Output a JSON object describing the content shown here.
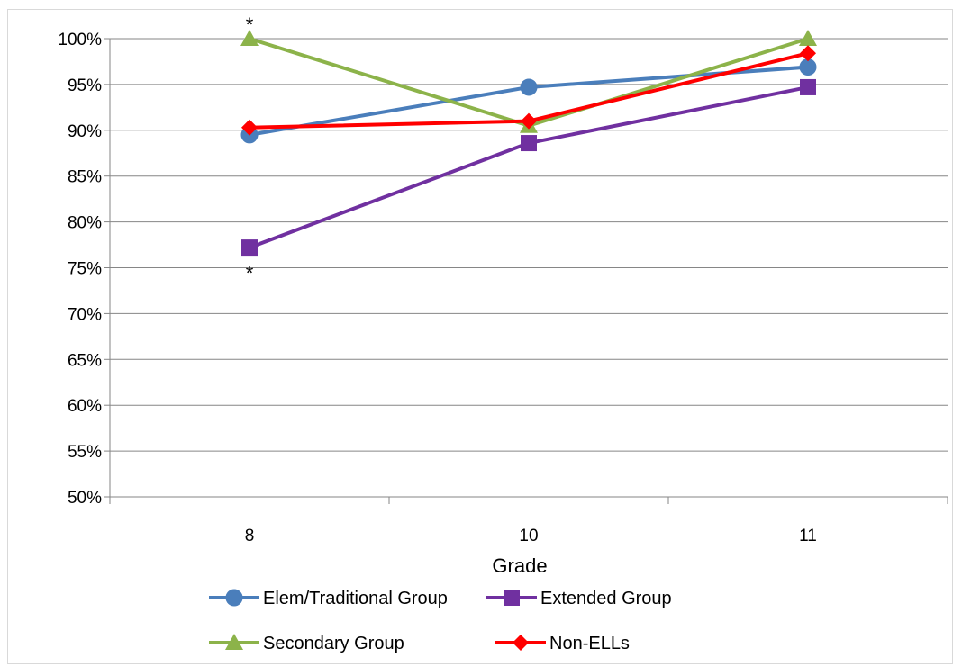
{
  "chart_data": {
    "type": "line",
    "title": "",
    "xlabel": "Grade",
    "ylabel": "",
    "categories": [
      "8",
      "10",
      "11"
    ],
    "ylim": [
      0.5,
      1.0
    ],
    "yticks": [
      0.5,
      0.55,
      0.6,
      0.65,
      0.7,
      0.75,
      0.8,
      0.85,
      0.9,
      0.95,
      1.0
    ],
    "ytick_labels": [
      "50%",
      "55%",
      "60%",
      "65%",
      "70%",
      "75%",
      "80%",
      "85%",
      "90%",
      "95%",
      "100%"
    ],
    "grid": true,
    "legend_position": "bottom",
    "series": [
      {
        "name": "Elem/Traditional Group",
        "values": [
          0.895,
          0.947,
          0.969
        ],
        "color": "#4a7ebb",
        "marker": "circle"
      },
      {
        "name": "Extended Group",
        "values": [
          0.772,
          0.886,
          0.947
        ],
        "color": "#7030a0",
        "marker": "square"
      },
      {
        "name": "Secondary Group",
        "values": [
          1.0,
          0.905,
          1.0
        ],
        "color": "#8cb34a",
        "marker": "triangle"
      },
      {
        "name": "Non-ELLs",
        "values": [
          0.903,
          0.91,
          0.984
        ],
        "color": "#ff0000",
        "marker": "diamond"
      }
    ],
    "annotations": [
      {
        "text": "*",
        "category": "8",
        "series": "Secondary Group",
        "position": "above"
      },
      {
        "text": "*",
        "category": "8",
        "series": "Extended Group",
        "position": "below"
      }
    ]
  }
}
